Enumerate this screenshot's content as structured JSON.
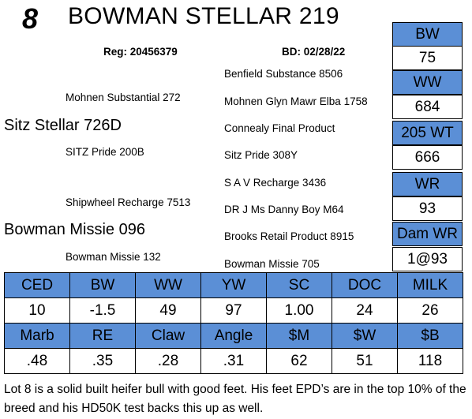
{
  "header": {
    "lot_number": "8",
    "title": "BOWMAN STELLAR 219",
    "reg": "Reg: 20456379",
    "bd": "BD: 02/28/22"
  },
  "pedigree": {
    "sire": "Sitz Stellar 726D",
    "sire_sire": "Mohnen Substantial 272",
    "sire_dam": "SITZ Pride 200B",
    "dam": "Bowman Missie 096",
    "dam_sire": "Shipwheel Recharge 7513",
    "dam_dam": "Bowman Missie 132",
    "ggs": [
      "Benfield Substance 8506",
      "Mohnen Glyn Mawr Elba 1758",
      "Connealy Final Product",
      "Sitz Pride 308Y",
      "S A V Recharge 3436",
      "DR J Ms Danny Boy M64",
      "Brooks Retail Product 8915",
      "Bowman Missie 705"
    ]
  },
  "stats": [
    {
      "label": "BW",
      "value": "75"
    },
    {
      "label": "WW",
      "value": "684"
    },
    {
      "label": "205 WT",
      "value": "666"
    },
    {
      "label": "WR",
      "value": "93"
    },
    {
      "label": "Dam WR",
      "value": "1@93"
    }
  ],
  "epd": {
    "row1_headers": [
      "CED",
      "BW",
      "WW",
      "YW",
      "SC",
      "DOC",
      "MILK"
    ],
    "row1_values": [
      "10",
      "-1.5",
      "49",
      "97",
      "1.00",
      "24",
      "26"
    ],
    "row2_headers": [
      "Marb",
      "RE",
      "Claw",
      "Angle",
      "$M",
      "$W",
      "$B"
    ],
    "row2_values": [
      ".48",
      ".35",
      ".28",
      ".31",
      "62",
      "51",
      "118"
    ]
  },
  "comments": "Lot 8 is a solid built heifer bull with good feet.  His feet EPD’s are in the top 10% of the breed and his HD50K test backs this up as well."
}
